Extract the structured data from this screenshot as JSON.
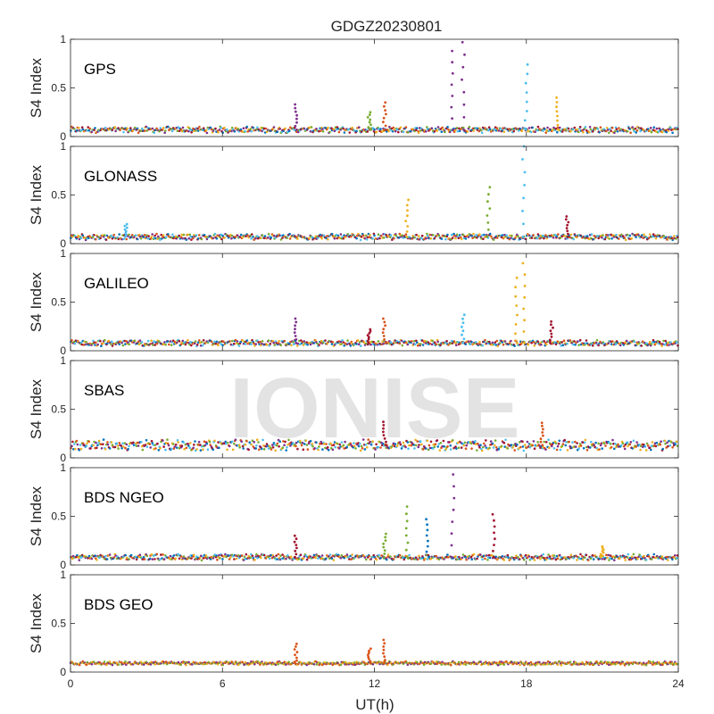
{
  "figure": {
    "title": "GDGZ20230801",
    "watermark": "IONISE"
  },
  "chart_data": [
    {
      "type": "scatter",
      "panel_label": "GPS",
      "xlabel": "",
      "ylabel": "S4 Index",
      "xlim": [
        0,
        24
      ],
      "ylim": [
        0,
        1
      ],
      "xticks": [
        0,
        6,
        12,
        18,
        24
      ],
      "yticks": [
        0,
        0.5,
        1
      ],
      "ytick_labels": [
        "0",
        "0.5",
        "1"
      ],
      "xtick_labels": [],
      "grid": false,
      "baseline": 0.07,
      "spread": 0.025,
      "series_colors": [
        "#0072BD",
        "#D95319",
        "#EDB120",
        "#7E2F8E",
        "#77AC30",
        "#4DBEEE",
        "#A2142F"
      ],
      "spikes": [
        {
          "x": 8.9,
          "ymax": 0.33,
          "color": "#7E2F8E"
        },
        {
          "x": 11.8,
          "ymax": 0.25,
          "color": "#77AC30"
        },
        {
          "x": 12.4,
          "ymax": 0.35,
          "color": "#D95319"
        },
        {
          "x": 15.1,
          "ymax": 0.88,
          "color": "#7E2F8E"
        },
        {
          "x": 15.5,
          "ymax": 0.97,
          "color": "#7E2F8E"
        },
        {
          "x": 18.0,
          "ymax": 0.74,
          "color": "#4DBEEE"
        },
        {
          "x": 19.2,
          "ymax": 0.4,
          "color": "#EDB120"
        }
      ]
    },
    {
      "type": "scatter",
      "panel_label": "GLONASS",
      "xlabel": "",
      "ylabel": "S4 Index",
      "xlim": [
        0,
        24
      ],
      "ylim": [
        0,
        1
      ],
      "xticks": [
        0,
        6,
        12,
        18,
        24
      ],
      "yticks": [
        0,
        0.5,
        1
      ],
      "ytick_labels": [
        "0",
        "0.5",
        "1"
      ],
      "xtick_labels": [],
      "grid": false,
      "baseline": 0.07,
      "spread": 0.025,
      "series_colors": [
        "#0072BD",
        "#D95319",
        "#EDB120",
        "#7E2F8E",
        "#77AC30",
        "#4DBEEE",
        "#A2142F"
      ],
      "spikes": [
        {
          "x": 2.2,
          "ymax": 0.2,
          "color": "#4DBEEE"
        },
        {
          "x": 13.3,
          "ymax": 0.45,
          "color": "#EDB120"
        },
        {
          "x": 16.5,
          "ymax": 0.58,
          "color": "#77AC30"
        },
        {
          "x": 17.9,
          "ymax": 1.0,
          "color": "#4DBEEE"
        },
        {
          "x": 19.6,
          "ymax": 0.28,
          "color": "#A2142F"
        }
      ]
    },
    {
      "type": "scatter",
      "panel_label": "GALILEO",
      "xlabel": "",
      "ylabel": "S4 Index",
      "xlim": [
        0,
        24
      ],
      "ylim": [
        0,
        1
      ],
      "xticks": [
        0,
        6,
        12,
        18,
        24
      ],
      "yticks": [
        0,
        0.5,
        1
      ],
      "ytick_labels": [
        "0",
        "0.5",
        "1"
      ],
      "xtick_labels": [],
      "grid": false,
      "baseline": 0.08,
      "spread": 0.025,
      "series_colors": [
        "#0072BD",
        "#D95319",
        "#EDB120",
        "#7E2F8E",
        "#77AC30",
        "#4DBEEE",
        "#A2142F"
      ],
      "spikes": [
        {
          "x": 8.9,
          "ymax": 0.33,
          "color": "#7E2F8E"
        },
        {
          "x": 11.8,
          "ymax": 0.22,
          "color": "#A2142F"
        },
        {
          "x": 12.4,
          "ymax": 0.33,
          "color": "#D95319"
        },
        {
          "x": 15.5,
          "ymax": 0.37,
          "color": "#4DBEEE"
        },
        {
          "x": 17.6,
          "ymax": 0.75,
          "color": "#EDB120"
        },
        {
          "x": 17.9,
          "ymax": 0.9,
          "color": "#EDB120"
        },
        {
          "x": 19.0,
          "ymax": 0.3,
          "color": "#A2142F"
        }
      ]
    },
    {
      "type": "scatter",
      "panel_label": "SBAS",
      "xlabel": "",
      "ylabel": "S4 Index",
      "xlim": [
        0,
        24
      ],
      "ylim": [
        0,
        1
      ],
      "xticks": [
        0,
        6,
        12,
        18,
        24
      ],
      "yticks": [
        0,
        0.5,
        1
      ],
      "ytick_labels": [
        "0",
        "0.5",
        "1"
      ],
      "xtick_labels": [],
      "grid": false,
      "baseline": 0.13,
      "spread": 0.045,
      "series_colors": [
        "#D95319",
        "#7E2F8E",
        "#A2142F",
        "#0072BD",
        "#4DBEEE",
        "#EDB120",
        "#77AC30"
      ],
      "spikes": [
        {
          "x": 12.4,
          "ymax": 0.37,
          "color": "#A2142F"
        },
        {
          "x": 18.6,
          "ymax": 0.36,
          "color": "#D95319"
        }
      ]
    },
    {
      "type": "scatter",
      "panel_label": "BDS NGEO",
      "xlabel": "",
      "ylabel": "S4 Index",
      "xlim": [
        0,
        24
      ],
      "ylim": [
        0,
        1
      ],
      "xticks": [
        0,
        6,
        12,
        18,
        24
      ],
      "yticks": [
        0,
        0.5,
        1
      ],
      "ytick_labels": [
        "0",
        "0.5",
        "1"
      ],
      "xtick_labels": [],
      "grid": false,
      "baseline": 0.08,
      "spread": 0.025,
      "series_colors": [
        "#0072BD",
        "#D95319",
        "#EDB120",
        "#7E2F8E",
        "#77AC30",
        "#4DBEEE",
        "#A2142F"
      ],
      "spikes": [
        {
          "x": 8.9,
          "ymax": 0.3,
          "color": "#A2142F"
        },
        {
          "x": 12.4,
          "ymax": 0.32,
          "color": "#77AC30"
        },
        {
          "x": 13.3,
          "ymax": 0.6,
          "color": "#77AC30"
        },
        {
          "x": 14.1,
          "ymax": 0.47,
          "color": "#0072BD"
        },
        {
          "x": 15.1,
          "ymax": 0.93,
          "color": "#7E2F8E"
        },
        {
          "x": 16.7,
          "ymax": 0.52,
          "color": "#A2142F"
        },
        {
          "x": 21.0,
          "ymax": 0.19,
          "color": "#EDB120"
        }
      ]
    },
    {
      "type": "scatter",
      "panel_label": "BDS GEO",
      "xlabel": "UT(h)",
      "ylabel": "S4 Index",
      "xlim": [
        0,
        24
      ],
      "ylim": [
        0,
        1
      ],
      "xticks": [
        0,
        6,
        12,
        18,
        24
      ],
      "yticks": [
        0,
        0.5,
        1
      ],
      "ytick_labels": [
        "0",
        "0.5",
        "1"
      ],
      "xtick_labels": [
        "0",
        "6",
        "12",
        "18",
        "24"
      ],
      "grid": false,
      "baseline": 0.09,
      "spread": 0.015,
      "series_colors": [
        "#7E2F8E",
        "#EDB120",
        "#D95319",
        "#77AC30"
      ],
      "spikes": [
        {
          "x": 8.9,
          "ymax": 0.29,
          "color": "#D95319"
        },
        {
          "x": 11.8,
          "ymax": 0.24,
          "color": "#D95319"
        },
        {
          "x": 12.4,
          "ymax": 0.33,
          "color": "#D95319"
        }
      ]
    }
  ]
}
